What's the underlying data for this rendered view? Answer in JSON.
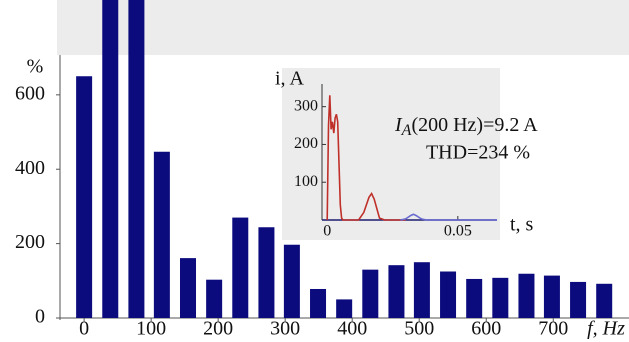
{
  "chart_data": [
    {
      "type": "bar",
      "y_label": "%",
      "x_label": "f, Hz",
      "color": "#0b0b7e",
      "x": [
        0,
        39,
        78,
        116,
        155,
        194,
        233,
        272,
        310,
        349,
        388,
        427,
        466,
        504,
        543,
        582,
        621,
        660,
        698,
        737,
        776
      ],
      "values": [
        650,
        855,
        855,
        447,
        161,
        103,
        270,
        244,
        197,
        78,
        50,
        130,
        142,
        150,
        125,
        105,
        108,
        119,
        114,
        97,
        92
      ],
      "xlim": [
        -36,
        813
      ],
      "xticks": [
        0,
        100,
        200,
        300,
        400,
        500,
        600,
        700
      ],
      "ylim": [
        0,
        855
      ],
      "yticks": [
        0,
        200,
        400,
        600
      ]
    },
    {
      "type": "line",
      "y_label": "i, A",
      "x_label": "t, s",
      "annotation_parts": [
        "I",
        "A",
        "(200 Hz)=9.2 A"
      ],
      "annotation_2": "THD=234 %",
      "xlim": [
        -0.002,
        0.065
      ],
      "xticks": [
        0,
        0.05
      ],
      "ylim": [
        0,
        360
      ],
      "yticks": [
        100,
        200,
        300
      ],
      "series": [
        {
          "color": "#c0302a",
          "x": [
            0,
            0.0005,
            0.001,
            0.0015,
            0.002,
            0.0025,
            0.003,
            0.0035,
            0.004,
            0.0045,
            0.005,
            0.0055,
            0.006,
            0.008,
            0.012,
            0.014,
            0.016,
            0.017,
            0.018,
            0.02,
            0.022,
            0.03
          ],
          "values": [
            0,
            250,
            330,
            240,
            260,
            230,
            270,
            280,
            260,
            150,
            40,
            5,
            0,
            0,
            0,
            20,
            60,
            70,
            55,
            5,
            0,
            0
          ]
        },
        {
          "color": "#6a6ad0",
          "x": [
            0.028,
            0.03,
            0.032,
            0.033,
            0.034,
            0.036,
            0.038,
            0.065
          ],
          "values": [
            0,
            3,
            12,
            15,
            12,
            3,
            0,
            0
          ]
        }
      ]
    }
  ]
}
